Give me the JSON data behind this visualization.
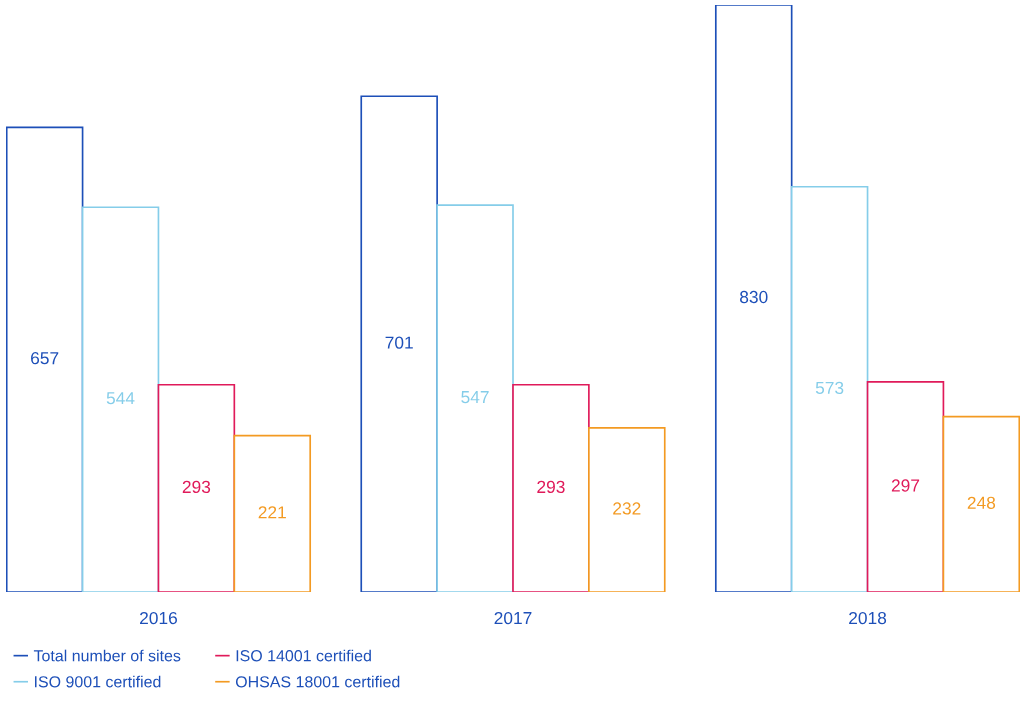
{
  "chart_data": {
    "type": "bar",
    "categories": [
      "2016",
      "2017",
      "2018"
    ],
    "series": [
      {
        "name": "Total number of sites",
        "color": "#1d4fb8",
        "values": [
          657,
          701,
          830
        ]
      },
      {
        "name": "ISO 9001 certified",
        "color": "#85cde9",
        "values": [
          544,
          547,
          573
        ]
      },
      {
        "name": "ISO 14001 certified",
        "color": "#e01a5a",
        "values": [
          293,
          293,
          297
        ]
      },
      {
        "name": "OHSAS 18001 certified",
        "color": "#f39a22",
        "values": [
          221,
          232,
          248
        ]
      }
    ],
    "data_labels": true,
    "legend": "bottom left",
    "grid": false,
    "tick_labels": "x"
  }
}
